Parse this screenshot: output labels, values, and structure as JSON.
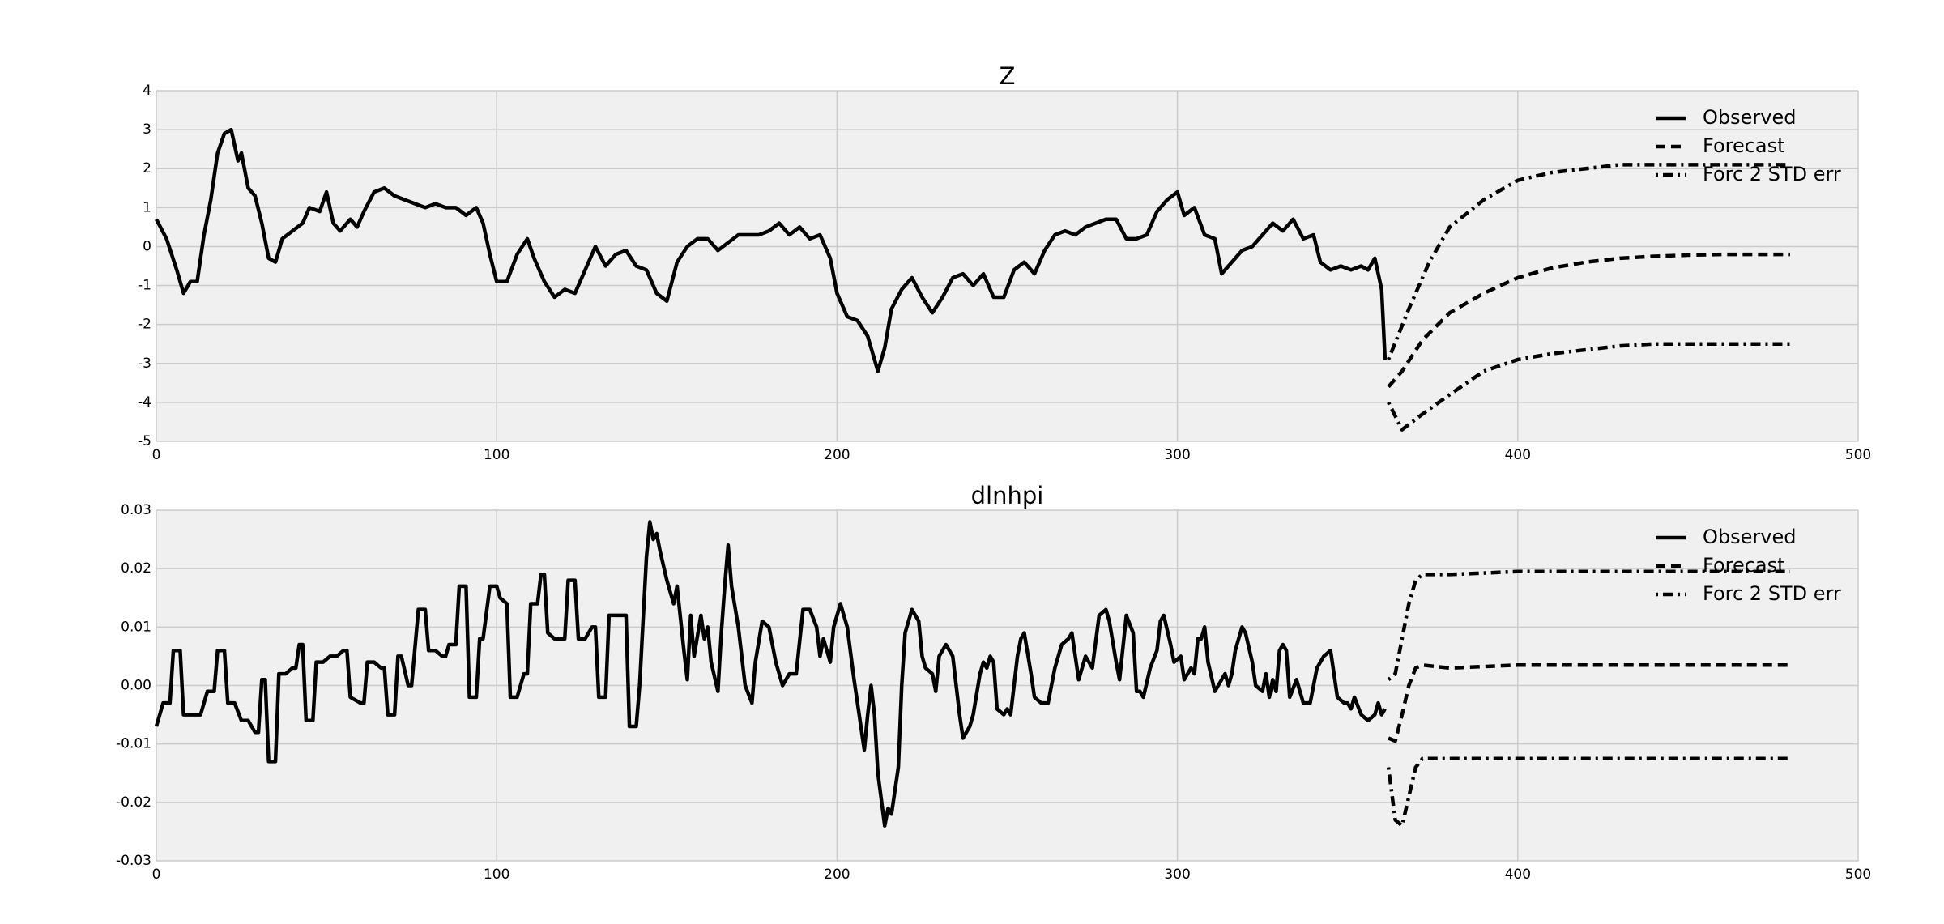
{
  "chart_data": [
    {
      "type": "line",
      "title": "Z",
      "xlim": [
        0,
        500
      ],
      "xticks": [
        0,
        100,
        200,
        300,
        400,
        500
      ],
      "ylim": [
        -5,
        4
      ],
      "yticks": [
        -5,
        -4,
        -3,
        -2,
        -1,
        0,
        1,
        2,
        3,
        4
      ],
      "grid": true,
      "legend": "upper right",
      "series": [
        {
          "name": "Observed",
          "color": "#000000",
          "style": "solid",
          "x": [
            0,
            3,
            6,
            8,
            10,
            12,
            14,
            16,
            18,
            20,
            22,
            24,
            25,
            27,
            29,
            31,
            33,
            35,
            37,
            40,
            43,
            45,
            48,
            50,
            52,
            54,
            57,
            59,
            61,
            64,
            67,
            70,
            73,
            76,
            79,
            82,
            85,
            88,
            91,
            94,
            96,
            98,
            100,
            103,
            106,
            109,
            111,
            114,
            117,
            120,
            123,
            126,
            129,
            132,
            135,
            138,
            141,
            144,
            147,
            150,
            153,
            156,
            159,
            162,
            165,
            168,
            171,
            174,
            177,
            180,
            183,
            186,
            189,
            192,
            195,
            198,
            200,
            203,
            206,
            209,
            212,
            214,
            216,
            219,
            222,
            225,
            228,
            231,
            234,
            237,
            240,
            243,
            246,
            249,
            252,
            255,
            258,
            261,
            264,
            267,
            270,
            273,
            276,
            279,
            282,
            285,
            288,
            291,
            294,
            297,
            300,
            302,
            305,
            308,
            311,
            313,
            316,
            319,
            322,
            325,
            328,
            331,
            334,
            337,
            340,
            342,
            345,
            348,
            351,
            354,
            356,
            358,
            360,
            361
          ],
          "values": [
            0.7,
            0.2,
            -0.6,
            -1.2,
            -0.9,
            -0.9,
            0.3,
            1.2,
            2.4,
            2.9,
            3.0,
            2.2,
            2.4,
            1.5,
            1.3,
            0.6,
            -0.3,
            -0.4,
            0.2,
            0.4,
            0.6,
            1.0,
            0.9,
            1.4,
            0.6,
            0.4,
            0.7,
            0.5,
            0.9,
            1.4,
            1.5,
            1.3,
            1.2,
            1.1,
            1.0,
            1.1,
            1.0,
            1.0,
            0.8,
            1.0,
            0.6,
            -0.2,
            -0.9,
            -0.9,
            -0.2,
            0.2,
            -0.3,
            -0.9,
            -1.3,
            -1.1,
            -1.2,
            -0.6,
            0.0,
            -0.5,
            -0.2,
            -0.1,
            -0.5,
            -0.6,
            -1.2,
            -1.4,
            -0.4,
            0.0,
            0.2,
            0.2,
            -0.1,
            0.1,
            0.3,
            0.3,
            0.3,
            0.4,
            0.6,
            0.3,
            0.5,
            0.2,
            0.3,
            -0.3,
            -1.2,
            -1.8,
            -1.9,
            -2.3,
            -3.2,
            -2.6,
            -1.6,
            -1.1,
            -0.8,
            -1.3,
            -1.7,
            -1.3,
            -0.8,
            -0.7,
            -1.0,
            -0.7,
            -1.3,
            -1.3,
            -0.6,
            -0.4,
            -0.7,
            -0.1,
            0.3,
            0.4,
            0.3,
            0.5,
            0.6,
            0.7,
            0.7,
            0.2,
            0.2,
            0.3,
            0.9,
            1.2,
            1.4,
            0.8,
            1.0,
            0.3,
            0.2,
            -0.7,
            -0.4,
            -0.1,
            0.0,
            0.3,
            0.6,
            0.4,
            0.7,
            0.2,
            0.3,
            -0.4,
            -0.6,
            -0.5,
            -0.6,
            -0.5,
            -0.6,
            -0.3,
            -1.1,
            -2.9
          ]
        },
        {
          "name": "Forecast",
          "color": "#000000",
          "style": "dashed",
          "x": [
            362,
            366,
            372,
            380,
            390,
            400,
            410,
            420,
            430,
            440,
            450,
            460,
            470,
            480
          ],
          "values": [
            -3.6,
            -3.2,
            -2.4,
            -1.7,
            -1.2,
            -0.8,
            -0.55,
            -0.4,
            -0.3,
            -0.25,
            -0.22,
            -0.2,
            -0.2,
            -0.2
          ]
        },
        {
          "name": "Forc 2 STD err",
          "color": "#000000",
          "style": "dashdot",
          "x": [
            362,
            368,
            374,
            380,
            390,
            400,
            410,
            420,
            430,
            440,
            450,
            460,
            470,
            480
          ],
          "values": [
            -2.9,
            -1.6,
            -0.4,
            0.5,
            1.2,
            1.7,
            1.9,
            2.0,
            2.1,
            2.1,
            2.1,
            2.1,
            2.1,
            2.1
          ]
        },
        {
          "color": "#000000",
          "style": "dashdot",
          "x": [
            362,
            366,
            372,
            380,
            390,
            400,
            410,
            420,
            430,
            440,
            450,
            460,
            470,
            480
          ],
          "values": [
            -4.0,
            -4.7,
            -4.3,
            -3.8,
            -3.2,
            -2.9,
            -2.75,
            -2.65,
            -2.55,
            -2.5,
            -2.5,
            -2.5,
            -2.5,
            -2.5
          ]
        }
      ]
    },
    {
      "type": "line",
      "title": "dlnhpi",
      "xlim": [
        0,
        500
      ],
      "xticks": [
        0,
        100,
        200,
        300,
        400,
        500
      ],
      "ylim": [
        -0.03,
        0.03
      ],
      "yticks": [
        -0.03,
        -0.02,
        -0.01,
        {
          "value": 0,
          "label": "0.00"
        },
        0.01,
        0.02,
        0.03
      ],
      "grid": true,
      "legend": "upper right",
      "series": [
        {
          "name": "Observed",
          "color": "#000000",
          "style": "solid",
          "x": [
            0,
            2,
            4,
            5,
            7,
            8,
            10,
            13,
            15,
            17,
            18,
            20,
            21,
            23,
            25,
            27,
            29,
            30,
            31,
            32,
            33,
            35,
            36,
            38,
            40,
            41,
            42,
            43,
            44,
            46,
            47,
            49,
            51,
            53,
            55,
            56,
            57,
            60,
            61,
            62,
            64,
            66,
            67,
            68,
            70,
            71,
            72,
            74,
            75,
            77,
            79,
            80,
            82,
            84,
            85,
            86,
            88,
            89,
            91,
            92,
            94,
            95,
            96,
            98,
            100,
            101,
            103,
            104,
            106,
            108,
            109,
            110,
            112,
            113,
            114,
            115,
            117,
            120,
            121,
            123,
            124,
            126,
            128,
            129,
            130,
            132,
            133,
            135,
            138,
            139,
            141,
            142,
            144,
            145,
            146,
            147,
            148,
            150,
            152,
            153,
            155,
            156,
            157,
            158,
            160,
            161,
            162,
            163,
            165,
            166,
            167,
            168,
            169,
            171,
            173,
            175,
            176,
            178,
            180,
            182,
            184,
            186,
            188,
            190,
            192,
            194,
            195,
            196,
            198,
            199,
            201,
            203,
            205,
            207,
            208,
            209,
            210,
            211,
            212,
            214,
            215,
            216,
            218,
            219,
            220,
            222,
            224,
            225,
            226,
            228,
            229,
            230,
            232,
            234,
            236,
            237,
            239,
            240,
            242,
            243,
            244,
            245,
            246,
            247,
            249,
            250,
            251,
            253,
            254,
            255,
            257,
            258,
            260,
            262,
            264,
            266,
            268,
            269,
            271,
            273,
            275,
            277,
            279,
            280,
            282,
            283,
            285,
            287,
            288,
            289,
            290,
            292,
            294,
            295,
            296,
            298,
            299,
            301,
            302,
            304,
            305,
            306,
            307,
            308,
            309,
            311,
            313,
            314,
            315,
            316,
            317,
            319,
            320,
            322,
            323,
            325,
            326,
            327,
            328,
            329,
            330,
            331,
            332,
            333,
            335,
            336,
            337,
            338,
            339,
            341,
            343,
            345,
            346,
            347,
            349,
            350,
            351,
            352,
            354,
            356,
            358,
            359,
            360,
            361
          ],
          "values": [
            -0.007,
            -0.003,
            -0.003,
            0.006,
            0.006,
            -0.005,
            -0.005,
            -0.005,
            -0.001,
            -0.001,
            0.006,
            0.006,
            -0.003,
            -0.003,
            -0.006,
            -0.006,
            -0.008,
            -0.008,
            0.001,
            0.001,
            -0.013,
            -0.013,
            0.002,
            0.002,
            0.003,
            0.003,
            0.007,
            0.007,
            -0.006,
            -0.006,
            0.004,
            0.004,
            0.005,
            0.005,
            0.006,
            0.006,
            -0.002,
            -0.003,
            -0.003,
            0.004,
            0.004,
            0.003,
            0.003,
            -0.005,
            -0.005,
            0.005,
            0.005,
            0.0,
            0.0,
            0.013,
            0.013,
            0.006,
            0.006,
            0.005,
            0.005,
            0.007,
            0.007,
            0.017,
            0.017,
            -0.002,
            -0.002,
            0.008,
            0.008,
            0.017,
            0.017,
            0.015,
            0.014,
            -0.002,
            -0.002,
            0.002,
            0.002,
            0.014,
            0.014,
            0.019,
            0.019,
            0.009,
            0.008,
            0.008,
            0.018,
            0.018,
            0.008,
            0.008,
            0.01,
            0.01,
            -0.002,
            -0.002,
            0.012,
            0.012,
            0.012,
            -0.007,
            -0.007,
            0.0,
            0.022,
            0.028,
            0.025,
            0.026,
            0.023,
            0.018,
            0.014,
            0.017,
            0.006,
            0.001,
            0.012,
            0.005,
            0.012,
            0.008,
            0.01,
            0.004,
            -0.001,
            0.009,
            0.017,
            0.024,
            0.017,
            0.01,
            0.0,
            -0.003,
            0.004,
            0.011,
            0.01,
            0.004,
            0.0,
            0.002,
            0.002,
            0.013,
            0.013,
            0.01,
            0.005,
            0.008,
            0.004,
            0.01,
            0.014,
            0.01,
            0.001,
            -0.007,
            -0.011,
            -0.005,
            0.0,
            -0.005,
            -0.015,
            -0.024,
            -0.021,
            -0.022,
            -0.014,
            0.0,
            0.009,
            0.013,
            0.011,
            0.005,
            0.003,
            0.002,
            -0.001,
            0.005,
            0.007,
            0.005,
            -0.005,
            -0.009,
            -0.007,
            -0.005,
            0.002,
            0.004,
            0.003,
            0.005,
            0.004,
            -0.004,
            -0.005,
            -0.004,
            -0.005,
            0.005,
            0.008,
            0.009,
            0.002,
            -0.002,
            -0.003,
            -0.003,
            0.003,
            0.007,
            0.008,
            0.009,
            0.001,
            0.005,
            0.003,
            0.012,
            0.013,
            0.011,
            0.004,
            0.001,
            0.012,
            0.009,
            -0.001,
            -0.001,
            -0.002,
            0.003,
            0.006,
            0.011,
            0.012,
            0.007,
            0.004,
            0.005,
            0.001,
            0.003,
            0.002,
            0.008,
            0.008,
            0.01,
            0.004,
            -0.001,
            0.001,
            0.002,
            0.0,
            0.002,
            0.006,
            0.01,
            0.009,
            0.004,
            0.0,
            -0.001,
            0.002,
            -0.002,
            0.001,
            -0.001,
            0.006,
            0.007,
            0.006,
            -0.002,
            0.001,
            -0.001,
            -0.003,
            -0.003,
            -0.003,
            0.003,
            0.005,
            0.006,
            0.002,
            -0.002,
            -0.003,
            -0.003,
            -0.004,
            -0.002,
            -0.005,
            -0.006,
            -0.005,
            -0.003,
            -0.005,
            -0.004
          ]
        },
        {
          "name": "Forecast",
          "color": "#000000",
          "style": "dashed",
          "x": [
            362,
            364,
            366,
            368,
            370,
            372,
            380,
            400,
            420,
            440,
            460,
            480
          ],
          "values": [
            -0.009,
            -0.0095,
            -0.005,
            0.0,
            0.003,
            0.0035,
            0.003,
            0.0035,
            0.0035,
            0.0035,
            0.0035,
            0.0035
          ]
        },
        {
          "name": "Forc 2 STD err",
          "color": "#000000",
          "style": "dashdot",
          "x": [
            362,
            364,
            366,
            368,
            370,
            372,
            380,
            400,
            420,
            440,
            460,
            480
          ],
          "values": [
            0.001,
            0.002,
            0.008,
            0.014,
            0.018,
            0.019,
            0.019,
            0.0195,
            0.0195,
            0.0195,
            0.0195,
            0.0195
          ]
        },
        {
          "color": "#000000",
          "style": "dashdot",
          "x": [
            362,
            364,
            366,
            368,
            370,
            372,
            380,
            400,
            420,
            440,
            460,
            480
          ],
          "values": [
            -0.014,
            -0.023,
            -0.024,
            -0.019,
            -0.014,
            -0.0125,
            -0.0125,
            -0.0125,
            -0.0125,
            -0.0125,
            -0.0125,
            -0.0125
          ]
        }
      ]
    }
  ]
}
